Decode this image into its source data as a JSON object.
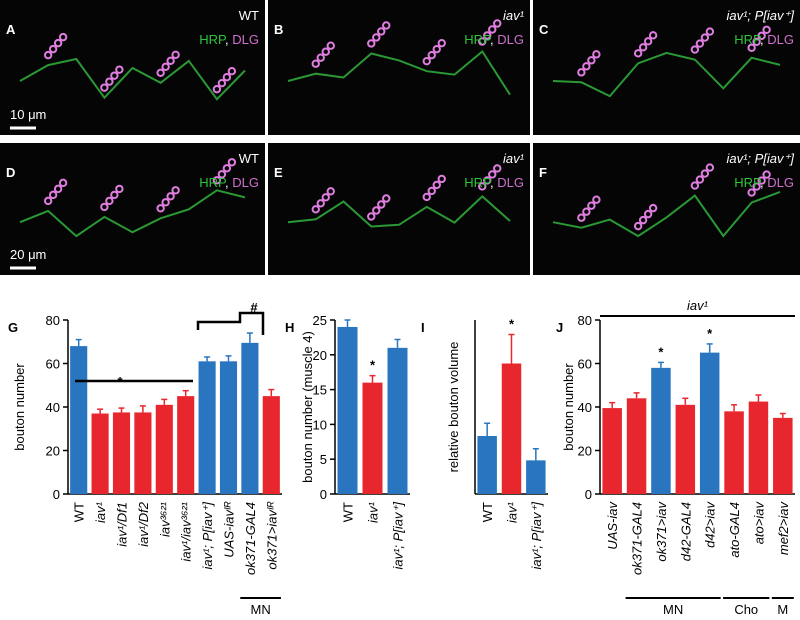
{
  "image_panels": [
    {
      "letter": "A",
      "genotype": "WT",
      "stain_label": {
        "green": "HRP",
        "sep": ", ",
        "magenta": "DLG"
      },
      "scale": "10 μm"
    },
    {
      "letter": "B",
      "genotype": "iav¹",
      "stain_label": {
        "green": "HRP",
        "sep": ", ",
        "magenta": "DLG"
      }
    },
    {
      "letter": "C",
      "genotype": "iav¹; P[iav⁺]",
      "stain_label": {
        "green": "HRP",
        "sep": ", ",
        "magenta": "DLG"
      }
    },
    {
      "letter": "D",
      "genotype": "WT",
      "stain_label": {
        "green": "HRP",
        "sep": ", ",
        "magenta": "DLG"
      },
      "scale": "20 μm"
    },
    {
      "letter": "E",
      "genotype": "iav¹",
      "stain_label": {
        "green": "HRP",
        "sep": ", ",
        "magenta": "DLG"
      }
    },
    {
      "letter": "F",
      "genotype": "iav¹; P[iav⁺]",
      "stain_label": {
        "green": "HRP",
        "sep": ", ",
        "magenta": "DLG"
      }
    }
  ],
  "chart_data": [
    {
      "type": "bar",
      "panel": "G",
      "y_label": "bouton number",
      "categories": [
        "WT",
        "iav¹",
        "iav¹/Df1",
        "iav¹/Df2",
        "iav³⁶²¹",
        "iav¹/iav³⁶²¹",
        "iav¹; P[iav⁺]",
        "UAS-iavᴵᴿ",
        "ok371-GAL4",
        "ok371>iavᴵᴿ"
      ],
      "values": [
        68,
        37,
        37.5,
        37.5,
        41,
        45,
        61,
        61,
        69.5,
        45
      ],
      "errors": [
        3,
        2,
        2,
        3,
        2.5,
        2.5,
        2,
        2.5,
        4.5,
        3
      ],
      "colors": [
        "#2a75c0",
        "#e8262d",
        "#e8262d",
        "#e8262d",
        "#e8262d",
        "#e8262d",
        "#2a75c0",
        "#2a75c0",
        "#2a75c0",
        "#e8262d"
      ],
      "ylim": [
        0,
        80
      ],
      "yticks": [
        0,
        20,
        40,
        60,
        80
      ],
      "annotations": [
        "*",
        "#"
      ],
      "groups": [
        "MN"
      ]
    },
    {
      "type": "bar",
      "panel": "H",
      "y_label": "bouton number (muscle 4)",
      "categories": [
        "WT",
        "iav¹",
        "iav¹; P[iav⁺]"
      ],
      "values": [
        24,
        16,
        21
      ],
      "errors": [
        1,
        1,
        1.2
      ],
      "colors": [
        "#2a75c0",
        "#e8262d",
        "#2a75c0"
      ],
      "ylim": [
        0,
        25
      ],
      "yticks": [
        0,
        5,
        10,
        15,
        20,
        25
      ],
      "annotations": [
        "*"
      ]
    },
    {
      "type": "bar",
      "panel": "I",
      "y_label": "relative bouton volume",
      "categories": [
        "WT",
        "iav¹",
        "iav¹; P[iav⁺]"
      ],
      "values": [
        1.0,
        2.25,
        0.58
      ],
      "errors": [
        0.22,
        0.5,
        0.2
      ],
      "colors": [
        "#2a75c0",
        "#e8262d",
        "#2a75c0"
      ],
      "ylim": [
        0,
        3
      ],
      "annotations": [
        "*"
      ]
    },
    {
      "type": "bar",
      "panel": "J",
      "y_label": "bouton number",
      "top_label": "iav¹",
      "categories": [
        "UAS-iav",
        "ok371-GAL4",
        "ok371>iav",
        "d42-GAL4",
        "d42>iav",
        "ato-GAL4",
        "ato>iav",
        "mef2>iav"
      ],
      "values": [
        39.5,
        44,
        58,
        41,
        65,
        38,
        42.5,
        35
      ],
      "errors": [
        2.5,
        2.5,
        2.5,
        3,
        4,
        3,
        3,
        2
      ],
      "colors": [
        "#e8262d",
        "#e8262d",
        "#2a75c0",
        "#e8262d",
        "#2a75c0",
        "#e8262d",
        "#e8262d",
        "#e8262d"
      ],
      "ylim": [
        0,
        80
      ],
      "yticks": [
        0,
        20,
        40,
        60,
        80
      ],
      "annotations": [
        "*",
        "*"
      ],
      "groups": [
        "MN",
        "Cho",
        "M"
      ]
    }
  ]
}
